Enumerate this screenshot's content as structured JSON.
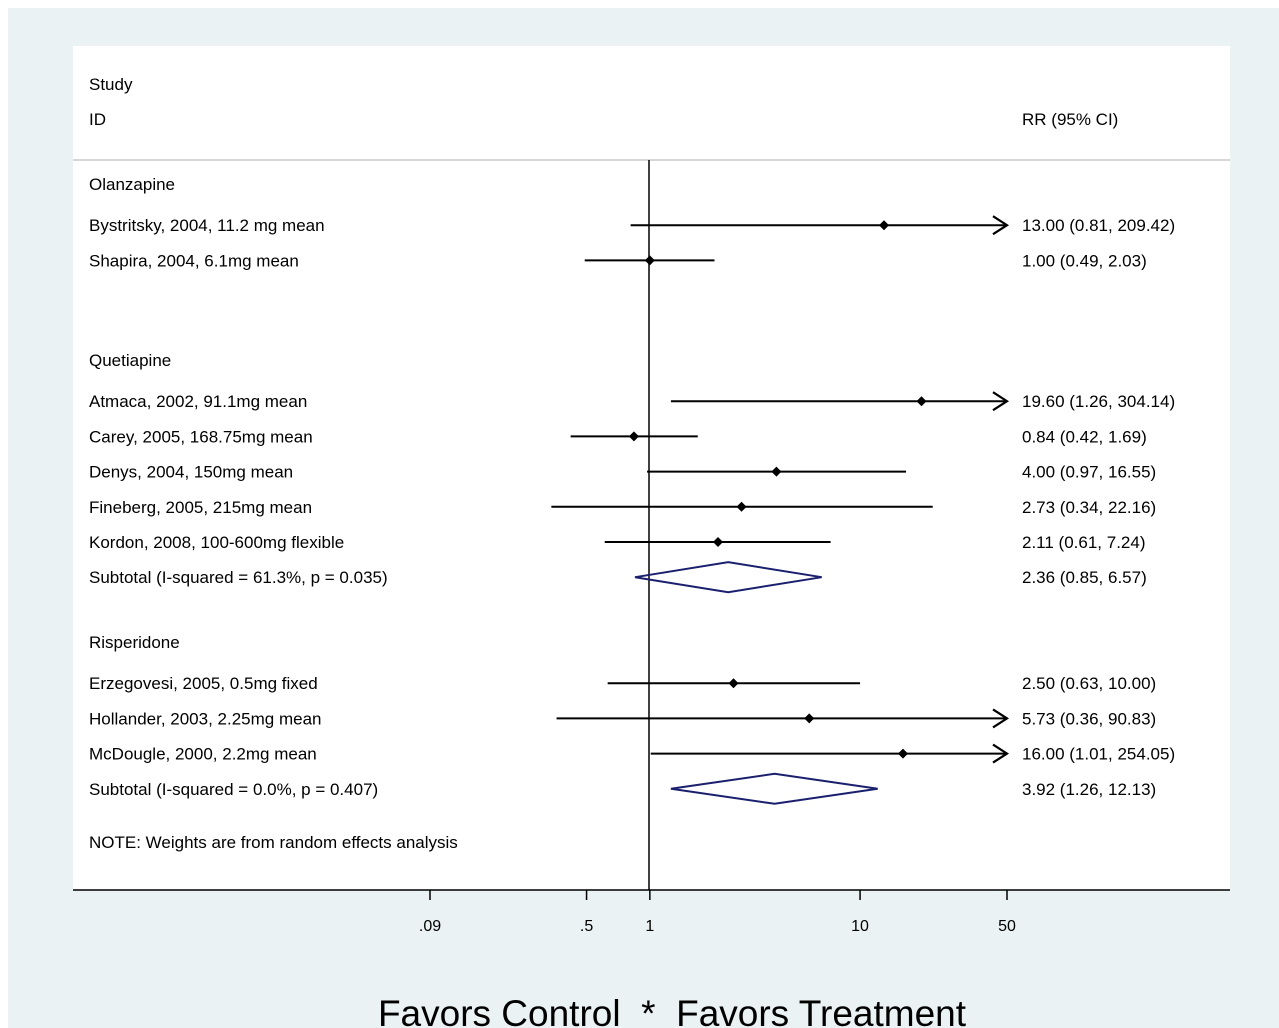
{
  "header": {
    "study_line1": "Study",
    "study_line2": "ID",
    "effect_header": "RR (95% CI)"
  },
  "note": "NOTE: Weights are from random effects analysis",
  "caption": "Favors Control  *  Favors Treatment",
  "colors": {
    "outer_background": "#eaf2f3",
    "panel": "#ffffff",
    "marks": "#000000",
    "diamond": "#1a1f6e"
  },
  "chart_data": {
    "type": "forest",
    "x_scale": "log",
    "x_ticks": [
      {
        "value": 0.09,
        "label": ".09"
      },
      {
        "value": 0.5,
        "label": ".5"
      },
      {
        "value": 1,
        "label": "1"
      },
      {
        "value": 10,
        "label": "10"
      },
      {
        "value": 50,
        "label": "50"
      }
    ],
    "xlim": [
      0.09,
      50
    ],
    "reference_value": 1,
    "groups": [
      {
        "name": "Olanzapine",
        "studies": [
          {
            "id": "Bystritsky, 2004, 11.2 mg mean",
            "rr": 13.0,
            "lo": 0.81,
            "hi": 209.42,
            "label": "13.00 (0.81, 209.42)"
          },
          {
            "id": "Shapira, 2004, 6.1mg mean",
            "rr": 1.0,
            "lo": 0.49,
            "hi": 2.03,
            "label": "1.00 (0.49, 2.03)"
          }
        ]
      },
      {
        "name": "Quetiapine",
        "studies": [
          {
            "id": "Atmaca, 2002, 91.1mg mean",
            "rr": 19.6,
            "lo": 1.26,
            "hi": 304.14,
            "label": "19.60 (1.26, 304.14)"
          },
          {
            "id": "Carey, 2005, 168.75mg mean",
            "rr": 0.84,
            "lo": 0.42,
            "hi": 1.69,
            "label": "0.84 (0.42, 1.69)"
          },
          {
            "id": "Denys, 2004, 150mg mean",
            "rr": 4.0,
            "lo": 0.97,
            "hi": 16.55,
            "label": "4.00 (0.97, 16.55)"
          },
          {
            "id": "Fineberg, 2005, 215mg mean",
            "rr": 2.73,
            "lo": 0.34,
            "hi": 22.16,
            "label": "2.73 (0.34, 22.16)"
          },
          {
            "id": "Kordon, 2008, 100-600mg flexible",
            "rr": 2.11,
            "lo": 0.61,
            "hi": 7.24,
            "label": "2.11 (0.61, 7.24)"
          }
        ],
        "subtotal": {
          "id": "Subtotal  (I-squared = 61.3%, p = 0.035)",
          "rr": 2.36,
          "lo": 0.85,
          "hi": 6.57,
          "label": "2.36 (0.85, 6.57)"
        }
      },
      {
        "name": "Risperidone",
        "studies": [
          {
            "id": "Erzegovesi, 2005, 0.5mg fixed",
            "rr": 2.5,
            "lo": 0.63,
            "hi": 10.0,
            "label": "2.50 (0.63, 10.00)"
          },
          {
            "id": "Hollander, 2003, 2.25mg mean",
            "rr": 5.73,
            "lo": 0.36,
            "hi": 90.83,
            "label": "5.73 (0.36, 90.83)"
          },
          {
            "id": "McDougle, 2000, 2.2mg mean",
            "rr": 16.0,
            "lo": 1.01,
            "hi": 254.05,
            "label": "16.00 (1.01, 254.05)"
          }
        ],
        "subtotal": {
          "id": "Subtotal  (I-squared = 0.0%, p = 0.407)",
          "rr": 3.92,
          "lo": 1.26,
          "hi": 12.13,
          "label": "3.92 (1.26, 12.13)"
        }
      }
    ]
  }
}
